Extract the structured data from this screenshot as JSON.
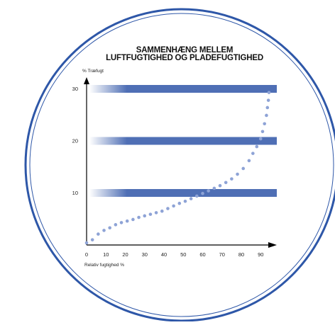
{
  "chart_data": {
    "type": "scatter",
    "title_lines": [
      "SAMMENHÆNG MELLEM",
      "LUFTFUGTIGHED OG PLADEFUGTIGHED"
    ],
    "xlabel": "Relativ fugtighed %",
    "ylabel": "% Træfugt",
    "x_ticks": [
      "0",
      "10",
      "20",
      "30",
      "40",
      "50",
      "60",
      "70",
      "80",
      "90"
    ],
    "y_ticks": [
      "10",
      "20",
      "30"
    ],
    "xlim": [
      0,
      97
    ],
    "ylim": [
      0,
      32
    ],
    "reference_bands": [
      10,
      20,
      30
    ],
    "series": [
      {
        "x": [
          0,
          3,
          6,
          9,
          12,
          15,
          18,
          21,
          24,
          27,
          30,
          33,
          36,
          39,
          42,
          45,
          48,
          51,
          54,
          57,
          60,
          63,
          66,
          69,
          72,
          75,
          78,
          81,
          84,
          86,
          88,
          90,
          91,
          92,
          93,
          93.5,
          94,
          94.3
        ],
        "y": [
          0.4,
          1.0,
          2.1,
          2.8,
          3.3,
          3.9,
          4.3,
          4.6,
          4.9,
          5.3,
          5.6,
          5.9,
          6.2,
          6.5,
          7.0,
          7.5,
          8.0,
          8.4,
          8.9,
          9.4,
          9.9,
          10.4,
          10.9,
          11.4,
          12.0,
          12.7,
          13.6,
          14.7,
          16.2,
          17.6,
          18.9,
          20.4,
          21.8,
          23.3,
          24.9,
          26.4,
          27.8,
          29.3
        ]
      }
    ],
    "colors": {
      "band": "#4f6fb5",
      "dots": "#8ea3d6",
      "ring": "#2e57a8",
      "axis": "#000000"
    }
  }
}
